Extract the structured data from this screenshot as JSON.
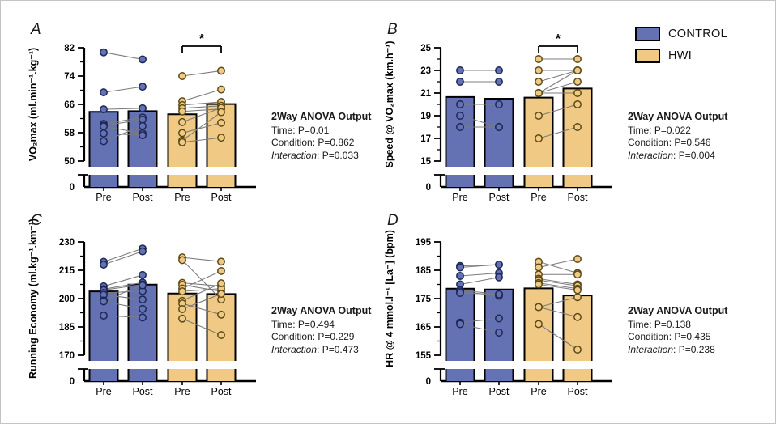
{
  "figure": {
    "background": "#ffffff"
  },
  "colors": {
    "control_fill": "#6471B2",
    "control_point_stroke": "#1C2758",
    "hwi_fill": "#F0CA84",
    "hwi_point_stroke": "#5C4A16",
    "bar_border": "#000000",
    "pair_line": "#7C7C7C",
    "axis": "#000000"
  },
  "legend": {
    "items": [
      {
        "label": "CONTROL",
        "color": "#6471B2"
      },
      {
        "label": "HWI",
        "color": "#F0CA84"
      }
    ]
  },
  "chart_data": [
    {
      "panel": "A",
      "type": "bar",
      "ylabel": "VO₂max (ml.min⁻¹.kg⁻¹)",
      "ylim": [
        50,
        82
      ],
      "yticks": [
        50,
        58,
        66,
        74,
        82
      ],
      "minor_step": 4,
      "broken_axis_zero": "0",
      "categories": [
        "Pre",
        "Post",
        "Pre",
        "Post"
      ],
      "groups": [
        "CONTROL",
        "HWI"
      ],
      "bars": [
        63.9,
        64.1,
        63.2,
        66.1
      ],
      "control_pairs": [
        [
          80.7,
          78.7
        ],
        [
          69.4,
          71.0
        ],
        [
          64.6,
          64.9
        ],
        [
          60.5,
          62.3
        ],
        [
          60.0,
          61.7
        ],
        [
          59.8,
          57.8
        ],
        [
          57.8,
          57.3
        ],
        [
          55.6,
          59.9
        ]
      ],
      "hwi_pairs": [
        [
          74.0,
          75.5
        ],
        [
          66.9,
          70.2
        ],
        [
          65.8,
          66.7
        ],
        [
          64.9,
          65.6
        ],
        [
          64.0,
          64.7
        ],
        [
          61.0,
          65.0
        ],
        [
          57.9,
          60.8
        ],
        [
          55.8,
          63.8
        ],
        [
          55.3,
          56.6
        ]
      ],
      "significance": {
        "show": true,
        "label": "*",
        "over": "HWI"
      },
      "anova": {
        "title": "2Way ANOVA Output",
        "sep": ": ",
        "rows": [
          {
            "label": "Time",
            "value": "P=0.01",
            "style": ""
          },
          {
            "label": "Condition",
            "value": "P=0.862",
            "style": ""
          },
          {
            "label": "Interaction",
            "value": "P=0.033",
            "style": "italic-label"
          }
        ]
      }
    },
    {
      "panel": "B",
      "type": "bar",
      "ylabel": "Speed @ VO₂max (km.h⁻¹)",
      "ylim": [
        15,
        25
      ],
      "yticks": [
        15,
        17,
        19,
        21,
        23,
        25
      ],
      "minor_step": 1,
      "broken_axis_zero": "0",
      "categories": [
        "Pre",
        "Post",
        "Pre",
        "Post"
      ],
      "groups": [
        "CONTROL",
        "HWI"
      ],
      "bars": [
        20.65,
        20.5,
        20.6,
        21.4
      ],
      "control_pairs": [
        [
          23,
          23
        ],
        [
          22,
          22
        ],
        [
          20,
          20
        ],
        [
          19,
          18
        ],
        [
          18,
          18
        ]
      ],
      "hwi_pairs": [
        [
          24,
          24
        ],
        [
          23,
          23
        ],
        [
          22,
          23
        ],
        [
          21,
          23
        ],
        [
          21,
          22
        ],
        [
          21,
          21
        ],
        [
          19,
          20
        ],
        [
          17,
          18
        ]
      ],
      "significance": {
        "show": true,
        "label": "*",
        "over": "HWI"
      },
      "anova": {
        "title": "2Way ANOVA Output",
        "sep": ": ",
        "rows": [
          {
            "label": "Time",
            "value": "P=0.022",
            "style": ""
          },
          {
            "label": "Condition",
            "value": "P=0.546",
            "style": ""
          },
          {
            "label": "Interaction",
            "value": "P=0.004",
            "style": "italic-label"
          }
        ]
      }
    },
    {
      "panel": "C",
      "type": "bar",
      "ylabel": "Running Economy (ml.kg⁻¹.km⁻¹)",
      "ylim": [
        170,
        230
      ],
      "yticks": [
        170,
        185,
        200,
        215,
        230
      ],
      "minor_step": 7.5,
      "broken_axis_zero": "0",
      "categories": [
        "Pre",
        "Post",
        "Pre",
        "Post"
      ],
      "groups": [
        "CONTROL",
        "HWI"
      ],
      "bars": [
        203.8,
        207.4,
        202.7,
        202.4
      ],
      "control_pairs": [
        [
          219.5,
          226.5
        ],
        [
          218,
          225
        ],
        [
          206.5,
          212.5
        ],
        [
          205,
          208.5
        ],
        [
          204.5,
          207.5
        ],
        [
          203,
          204
        ],
        [
          202,
          199.5
        ],
        [
          199,
          207
        ],
        [
          198.5,
          194.5
        ],
        [
          191,
          190
        ]
      ],
      "hwi_pairs": [
        [
          221.8,
          219.6
        ],
        [
          220.4,
          199.5
        ],
        [
          208.3,
          206.6
        ],
        [
          207.3,
          203.8
        ],
        [
          205.3,
          214.6
        ],
        [
          203.8,
          205.3
        ],
        [
          198.8,
          208.1
        ],
        [
          197.4,
          191.5
        ],
        [
          194.4,
          202.5
        ],
        [
          189.4,
          180.7
        ]
      ],
      "significance": {
        "show": false,
        "label": "",
        "over": ""
      },
      "anova": {
        "title": "2Way ANOVA Output",
        "sep": ": ",
        "rows": [
          {
            "label": "Time",
            "value": "P=0.494",
            "style": ""
          },
          {
            "label": "Condition",
            "value": "P=0.229",
            "style": ""
          },
          {
            "label": "Interaction",
            "value": "P=0.473",
            "style": "italic-label"
          }
        ]
      }
    },
    {
      "panel": "D",
      "type": "bar",
      "ylabel": "HR @ 4 mmol.l⁻¹ [La⁻] (bpm)",
      "ylim": [
        155,
        195
      ],
      "yticks": [
        155,
        165,
        175,
        185,
        195
      ],
      "minor_step": 5,
      "broken_axis_zero": "0",
      "categories": [
        "Pre",
        "Post",
        "Pre",
        "Post"
      ],
      "groups": [
        "CONTROL",
        "HWI"
      ],
      "bars": [
        178.5,
        178.2,
        178.6,
        176.1
      ],
      "control_pairs": [
        [
          186.5,
          187
        ],
        [
          186,
          187
        ],
        [
          183,
          184
        ],
        [
          180,
          182.5
        ],
        [
          178,
          176.5
        ],
        [
          177.5,
          176
        ],
        [
          177,
          176.5
        ],
        [
          166.5,
          168
        ],
        [
          166,
          163
        ]
      ],
      "hwi_pairs": [
        [
          188,
          184
        ],
        [
          186,
          189
        ],
        [
          183.5,
          183.5
        ],
        [
          182,
          180
        ],
        [
          181.5,
          179.5
        ],
        [
          180.5,
          178.5
        ],
        [
          180,
          178
        ],
        [
          172,
          175.5
        ],
        [
          172,
          168.5
        ],
        [
          166,
          157
        ]
      ],
      "significance": {
        "show": false,
        "label": "",
        "over": ""
      },
      "anova": {
        "title": "2Way ANOVA Output",
        "sep": ": ",
        "rows": [
          {
            "label": "Time",
            "value": "P=0.138",
            "style": ""
          },
          {
            "label": "Condition",
            "value": "P=0.435",
            "style": ""
          },
          {
            "label": "Interaction",
            "value": "P=0.238",
            "style": "italic-label"
          }
        ]
      }
    }
  ]
}
